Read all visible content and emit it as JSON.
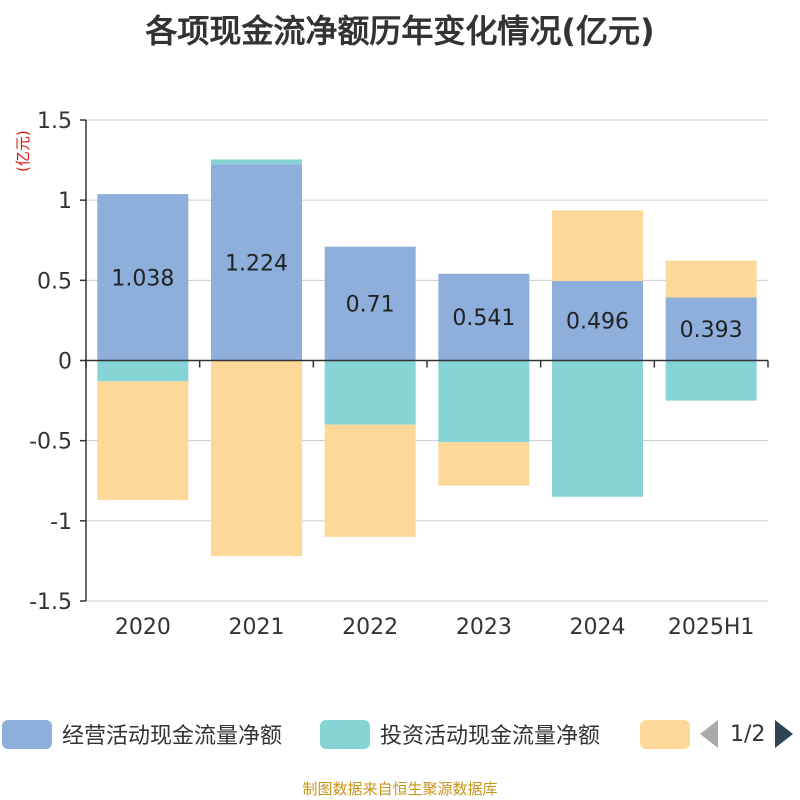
{
  "chart_data": {
    "type": "bar",
    "stacked": true,
    "title": "各项现金流净额历年变化情况(亿元)",
    "unit_label": "(亿元)",
    "categories": [
      "2020",
      "2021",
      "2022",
      "2023",
      "2024",
      "2025H1"
    ],
    "ylim": [
      -1.5,
      1.5
    ],
    "yticks": [
      1.5,
      1,
      0.5,
      0,
      -0.5,
      -1,
      -1.5
    ],
    "ytick_labels": [
      "1.5",
      "1",
      "0.5",
      "0",
      "-0.5",
      "-1",
      "-1.5"
    ],
    "grid": true,
    "legend_position": "bottom",
    "series": [
      {
        "name": "经营活动现金流量净额",
        "color": "#8eaedb",
        "values": [
          1.038,
          1.224,
          0.71,
          0.541,
          0.496,
          0.393
        ],
        "labels": [
          "1.038",
          "1.224",
          "0.71",
          "0.541",
          "0.496",
          "0.393"
        ]
      },
      {
        "name": "投资活动现金流量净额",
        "color": "#86d4d6",
        "values": [
          -0.13,
          0.03,
          -0.4,
          -0.51,
          -0.85,
          -0.25
        ]
      },
      {
        "name": "",
        "color": "#fed898",
        "values": [
          -0.74,
          -1.22,
          -0.7,
          -0.27,
          0.44,
          0.23
        ]
      }
    ]
  },
  "legend": {
    "items": [
      "经营活动现金流量净额",
      "投资活动现金流量净额",
      ""
    ],
    "page": "1/2"
  },
  "source": "制图数据来自恒生聚源数据库"
}
